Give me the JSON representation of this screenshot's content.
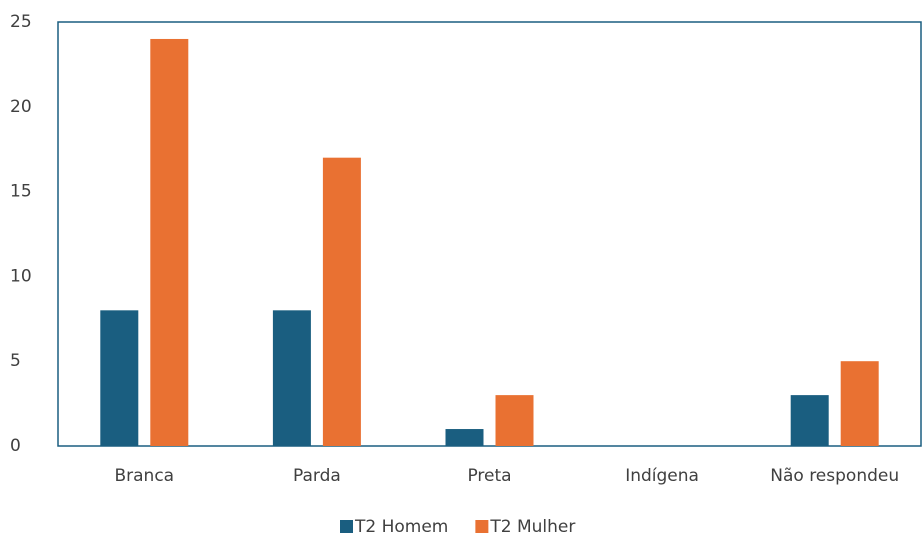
{
  "chart_data": {
    "type": "bar",
    "categories": [
      "Branca",
      "Parda",
      "Preta",
      "Indígena",
      "Não respondeu"
    ],
    "series": [
      {
        "name": "T2 Homem",
        "color": "#1a5e80",
        "values": [
          8,
          8,
          1,
          0,
          3
        ]
      },
      {
        "name": "T2 Mulher",
        "color": "#e97132",
        "values": [
          24,
          17,
          3,
          0,
          5
        ]
      }
    ],
    "ylim": [
      0,
      25
    ],
    "yticks": [
      0,
      5,
      10,
      15,
      20,
      25
    ],
    "grid": false,
    "legend": "bottom"
  }
}
